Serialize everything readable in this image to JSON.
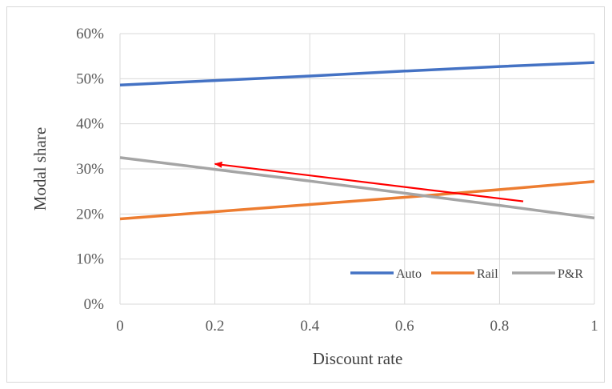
{
  "chart_data": {
    "type": "line",
    "title": "",
    "xlabel": "Discount rate",
    "ylabel": "Modal share",
    "x": [
      0,
      0.2,
      0.4,
      0.6,
      0.8,
      1
    ],
    "x_tick_labels": [
      "0",
      "0.2",
      "0.4",
      "0.6",
      "0.8",
      "1"
    ],
    "xlim": [
      0,
      1
    ],
    "y_tick_labels": [
      "0%",
      "10%",
      "20%",
      "30%",
      "40%",
      "50%",
      "60%"
    ],
    "y_ticks": [
      0,
      10,
      20,
      30,
      40,
      50,
      60
    ],
    "ylim": [
      0,
      60
    ],
    "y_unit": "percent",
    "grid": true,
    "legend_position": "bottom-right",
    "series": [
      {
        "name": "Auto",
        "color": "#4472c4",
        "values": [
          48.6,
          49.6,
          50.6,
          51.7,
          52.7,
          53.6
        ]
      },
      {
        "name": "Rail",
        "color": "#ed7d31",
        "values": [
          18.9,
          20.5,
          22.1,
          23.7,
          25.4,
          27.2
        ]
      },
      {
        "name": "P&R",
        "color": "#a5a5a5",
        "values": [
          32.5,
          29.9,
          27.3,
          24.6,
          21.9,
          19.1
        ]
      }
    ],
    "annotations": [
      {
        "type": "arrow",
        "color": "#ff0000",
        "from": [
          0.85,
          22.8
        ],
        "to": [
          0.2,
          31.1
        ]
      }
    ]
  }
}
